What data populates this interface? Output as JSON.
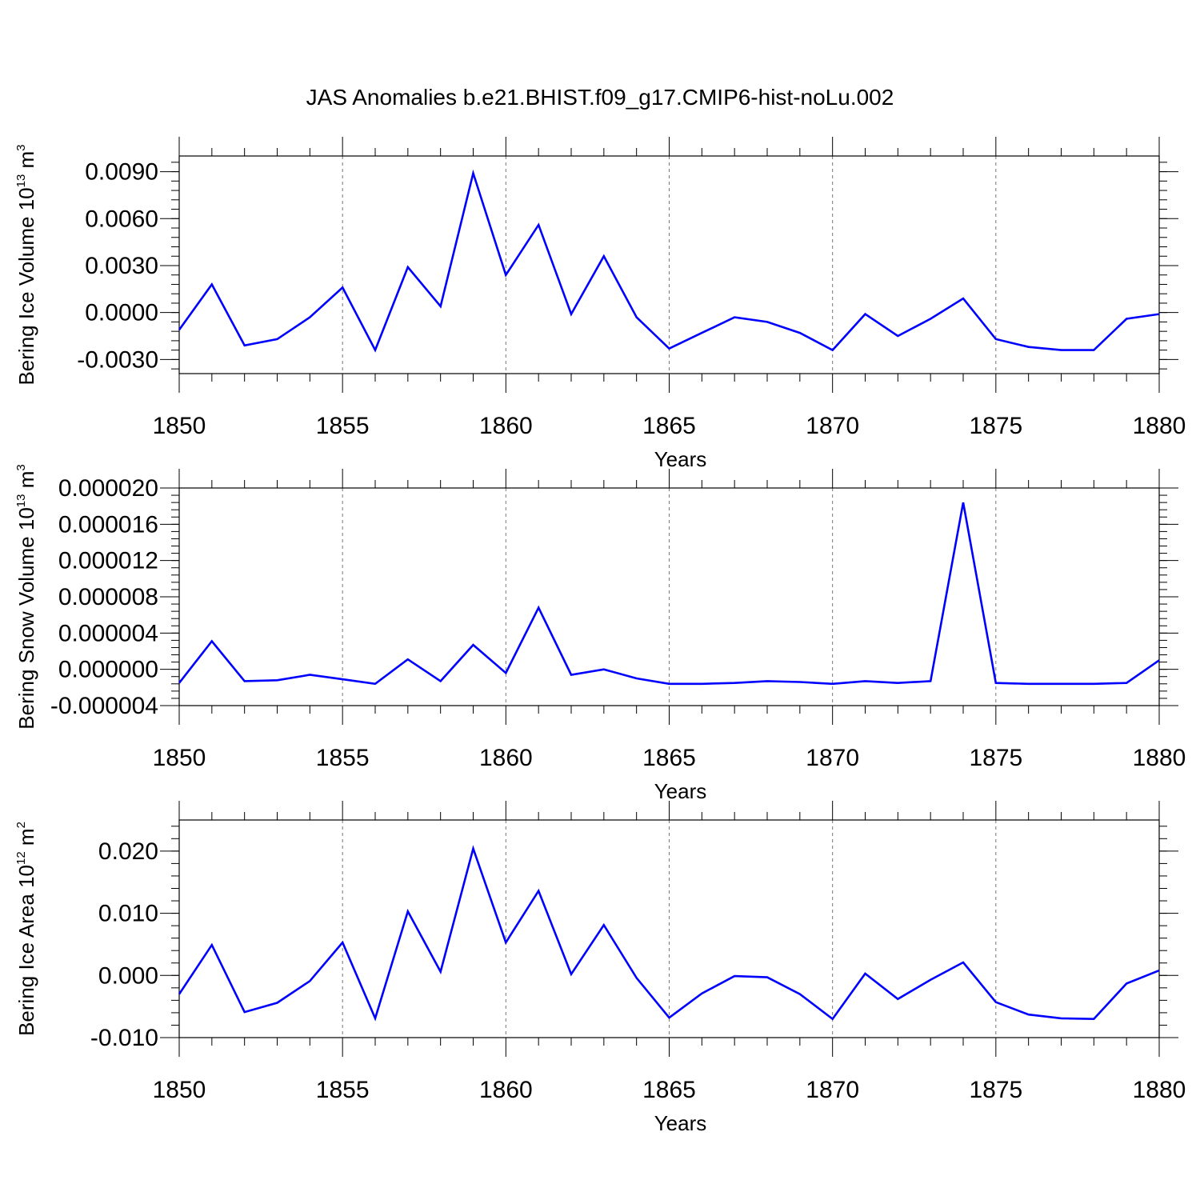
{
  "title": "JAS Anomalies b.e21.BHIST.f09_g17.CMIP6-hist-noLu.002",
  "chart_data": [
    {
      "type": "line",
      "title": "JAS Anomalies b.e21.BHIST.f09_g17.CMIP6-hist-noLu.002",
      "xlabel": "Years",
      "ylabel_text": "Bering Ice Volume 10",
      "ylabel_exp": "13",
      "ylabel_unit": " m",
      "ylabel_unit_exp": "3",
      "xlim": [
        1850,
        1880
      ],
      "ylim": [
        -0.0039,
        0.01
      ],
      "xticks": [
        1850,
        1855,
        1860,
        1865,
        1870,
        1875,
        1880
      ],
      "yticks": [
        -0.003,
        0.0,
        0.003,
        0.006,
        0.009
      ],
      "ytick_labels": [
        "-0.0030",
        "0.0000",
        "0.0030",
        "0.0060",
        "0.0090"
      ],
      "series_color": "#0000ff",
      "x": [
        1850,
        1851,
        1852,
        1853,
        1854,
        1855,
        1856,
        1857,
        1858,
        1859,
        1860,
        1861,
        1862,
        1863,
        1864,
        1865,
        1866,
        1867,
        1868,
        1869,
        1870,
        1871,
        1872,
        1873,
        1874,
        1875,
        1876,
        1877,
        1878,
        1879,
        1880
      ],
      "values": [
        -0.0011,
        0.0018,
        -0.0021,
        -0.0017,
        -0.0003,
        0.0016,
        -0.0024,
        0.0029,
        0.0004,
        0.0089,
        0.0024,
        0.0056,
        -0.0001,
        0.0036,
        -0.0003,
        -0.0023,
        -0.0013,
        -0.0003,
        -0.0006,
        -0.0013,
        -0.0024,
        -0.0001,
        -0.0015,
        -0.0004,
        0.0009,
        -0.0017,
        -0.0022,
        -0.0024,
        -0.0024,
        -0.0004,
        -0.0001
      ]
    },
    {
      "type": "line",
      "xlabel": "Years",
      "ylabel_text": "Bering Snow Volume 10",
      "ylabel_exp": "13",
      "ylabel_unit": " m",
      "ylabel_unit_exp": "3",
      "xlim": [
        1850,
        1880
      ],
      "ylim": [
        -4e-06,
        2e-05
      ],
      "xticks": [
        1850,
        1855,
        1860,
        1865,
        1870,
        1875,
        1880
      ],
      "yticks": [
        -4e-06,
        0.0,
        4e-06,
        8e-06,
        1.2e-05,
        1.6e-05,
        2e-05
      ],
      "ytick_labels": [
        "-0.000004",
        "0.000000",
        "0.000004",
        "0.000008",
        "0.000012",
        "0.000016",
        "0.000020"
      ],
      "series_color": "#0000ff",
      "x": [
        1850,
        1851,
        1852,
        1853,
        1854,
        1855,
        1856,
        1857,
        1858,
        1859,
        1860,
        1861,
        1862,
        1863,
        1864,
        1865,
        1866,
        1867,
        1868,
        1869,
        1870,
        1871,
        1872,
        1873,
        1874,
        1875,
        1876,
        1877,
        1878,
        1879,
        1880
      ],
      "values": [
        -1.5e-06,
        3.1e-06,
        -1.3e-06,
        -1.2e-06,
        -6e-07,
        -1.1e-06,
        -1.6e-06,
        1.1e-06,
        -1.3e-06,
        2.7e-06,
        -4e-07,
        6.8e-06,
        -6e-07,
        0.0,
        -1e-06,
        -1.6e-06,
        -1.6e-06,
        -1.5e-06,
        -1.3e-06,
        -1.4e-06,
        -1.6e-06,
        -1.3e-06,
        -1.5e-06,
        -1.3e-06,
        1.84e-05,
        -1.5e-06,
        -1.6e-06,
        -1.6e-06,
        -1.6e-06,
        -1.5e-06,
        1e-06
      ]
    },
    {
      "type": "line",
      "xlabel": "Years",
      "ylabel_text": "Bering Ice Area 10",
      "ylabel_exp": "12",
      "ylabel_unit": " m",
      "ylabel_unit_exp": "2",
      "xlim": [
        1850,
        1880
      ],
      "ylim": [
        -0.01,
        0.025
      ],
      "xticks": [
        1850,
        1855,
        1860,
        1865,
        1870,
        1875,
        1880
      ],
      "yticks": [
        -0.01,
        0.0,
        0.01,
        0.02
      ],
      "ytick_labels": [
        "-0.010",
        "0.000",
        "0.010",
        "0.020"
      ],
      "series_color": "#0000ff",
      "x": [
        1850,
        1851,
        1852,
        1853,
        1854,
        1855,
        1856,
        1857,
        1858,
        1859,
        1860,
        1861,
        1862,
        1863,
        1864,
        1865,
        1866,
        1867,
        1868,
        1869,
        1870,
        1871,
        1872,
        1873,
        1874,
        1875,
        1876,
        1877,
        1878,
        1879,
        1880
      ],
      "values": [
        -0.003,
        0.0049,
        -0.0059,
        -0.0044,
        -0.0009,
        0.0053,
        -0.0069,
        0.0103,
        0.0006,
        0.0204,
        0.0053,
        0.0136,
        0.0002,
        0.0081,
        -0.0004,
        -0.0068,
        -0.0029,
        -0.0001,
        -0.0003,
        -0.003,
        -0.007,
        0.0003,
        -0.0038,
        -0.0007,
        0.0021,
        -0.0043,
        -0.0063,
        -0.0069,
        -0.007,
        -0.0013,
        0.0008
      ]
    }
  ]
}
